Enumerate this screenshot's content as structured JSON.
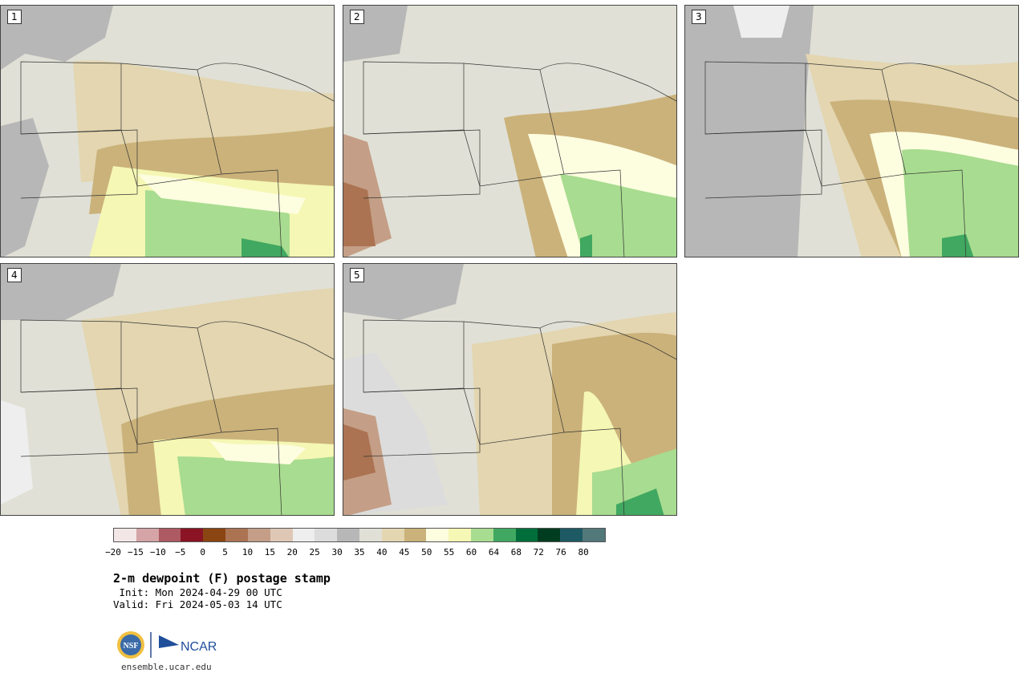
{
  "panels": [
    {
      "label": "1"
    },
    {
      "label": "2"
    },
    {
      "label": "3"
    },
    {
      "label": "4"
    },
    {
      "label": "5"
    }
  ],
  "colorbar": {
    "ticks": [
      "−20",
      "−15",
      "−10",
      "−5",
      "0",
      "5",
      "10",
      "15",
      "20",
      "25",
      "30",
      "35",
      "40",
      "45",
      "50",
      "55",
      "60",
      "64",
      "68",
      "72",
      "76",
      "80"
    ],
    "colors": [
      "#f2e6e6",
      "#d4a4a6",
      "#ad5a63",
      "#8a1424",
      "#8b4513",
      "#ab7352",
      "#c49e86",
      "#dfc7b6",
      "#eeeeee",
      "#dcdcdc",
      "#b7b7b7",
      "#e0e0d6",
      "#e3d6b0",
      "#cbb27a",
      "#fdfde0",
      "#f5f7b4",
      "#a8dc90",
      "#40a860",
      "#006e3a",
      "#003d20",
      "#1e5a64",
      "#52787a"
    ]
  },
  "title": "2-m dewpoint (F) postage stamp",
  "init": " Init: Mon 2024-04-29 00 UTC",
  "valid": "Valid: Fri 2024-05-03 14 UTC",
  "logos": {
    "nsf": "NSF",
    "ncar": "NCAR"
  },
  "website": "ensemble.ucar.edu"
}
